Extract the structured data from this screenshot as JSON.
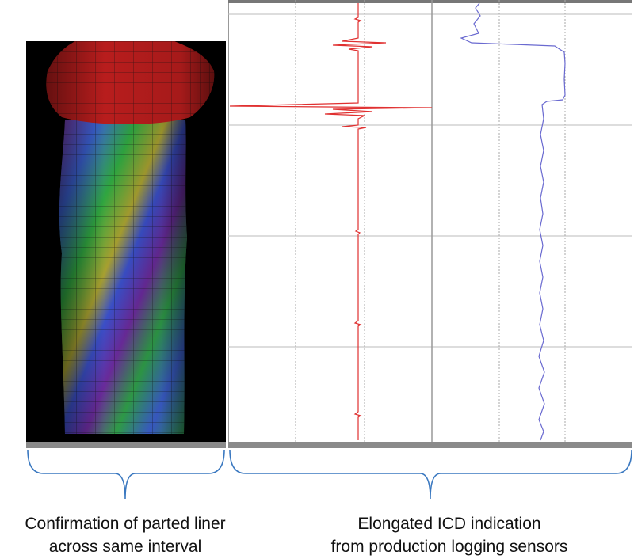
{
  "captions": [
    {
      "lines": [
        "Confirmation of parted liner",
        "across same interval"
      ]
    },
    {
      "lines": [
        "Elongated ICD indication",
        "from production logging sensors"
      ]
    }
  ]
}
